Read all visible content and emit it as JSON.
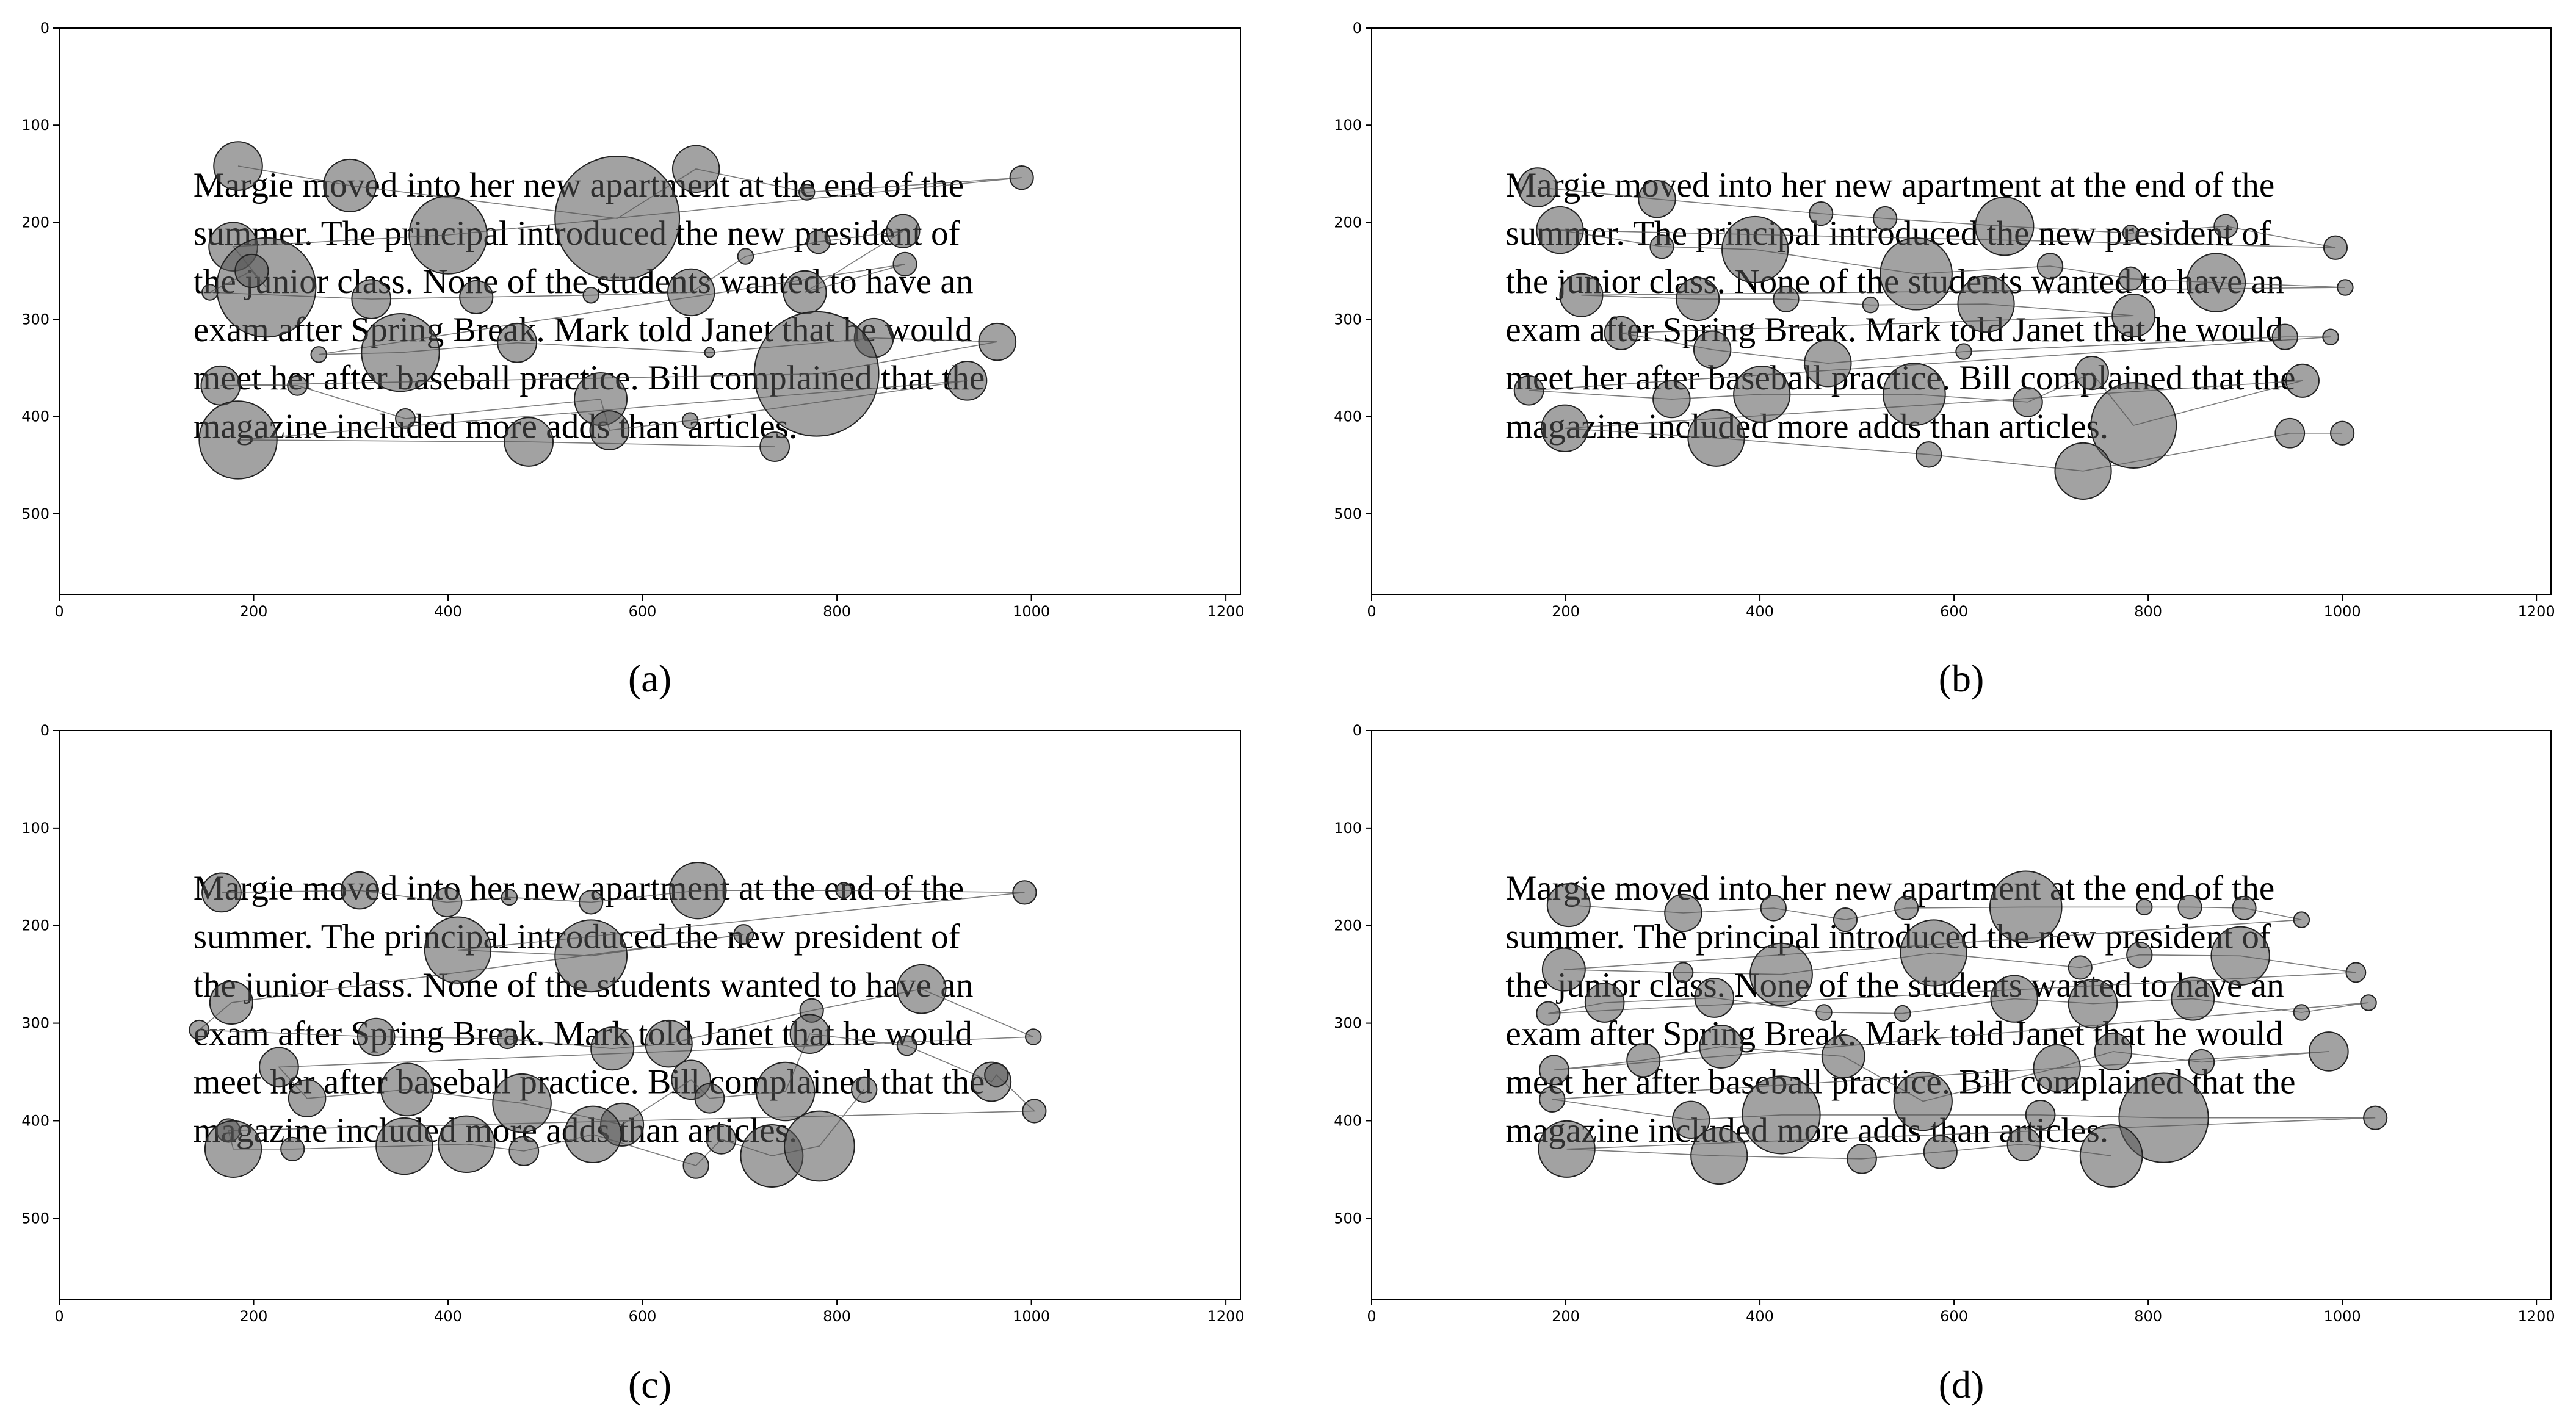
{
  "chart_data": [
    {
      "type": "bubble",
      "caption": "(a)",
      "color": "#555555",
      "stimulus_text": [
        "Margie moved into her new apartment at the end of the",
        "summer. The principal introduced the new president of",
        "the junior class. None of the students wanted to have an",
        "exam after Spring Break. Mark told Janet that he would",
        "meet her after baseball practice. Bill complained that the",
        "magazine included more adds than articles."
      ],
      "xlim": [
        0,
        1215
      ],
      "ylim": [
        583,
        0
      ],
      "xticks": [
        0,
        200,
        400,
        600,
        800,
        1000,
        1200
      ],
      "yticks": [
        0,
        100,
        200,
        300,
        400,
        500
      ],
      "x": [
        184,
        299,
        574,
        655,
        769,
        990,
        400,
        179,
        213,
        198,
        155,
        321,
        429,
        547,
        650,
        706,
        781,
        868,
        767,
        870,
        267,
        351,
        471,
        669,
        838,
        965,
        779,
        166,
        245,
        356,
        557,
        566,
        649,
        934,
        184,
        483,
        736
      ],
      "values": [
        142,
        162,
        196,
        145,
        169,
        154,
        213,
        225,
        267,
        250,
        272,
        279,
        277,
        275,
        272,
        235,
        220,
        209,
        272,
        243,
        336,
        334,
        324,
        334,
        319,
        323,
        356,
        368,
        368,
        402,
        382,
        414,
        404,
        363,
        424,
        426,
        431
      ],
      "sizes": [
        25,
        27,
        64,
        24,
        8,
        12,
        40,
        25,
        51,
        17,
        8,
        20,
        17,
        8,
        24,
        8,
        12,
        17,
        22,
        12,
        8,
        40,
        20,
        5,
        20,
        19,
        64,
        20,
        10,
        10,
        27,
        20,
        8,
        20,
        40,
        25,
        15
      ]
    },
    {
      "type": "bubble",
      "caption": "(b)",
      "color": "#555555",
      "stimulus_text": [
        "Margie moved into her new apartment at the end of the",
        "summer. The principal introduced the new president of",
        "the junior class. None of the students wanted to have an",
        "exam after Spring Break. Mark told Janet that he would",
        "meet her after baseball practice. Bill complained that the",
        "magazine included more adds than articles."
      ],
      "xlim": [
        0,
        1215
      ],
      "ylim": [
        583,
        0
      ],
      "xticks": [
        0,
        200,
        400,
        600,
        800,
        1000,
        1200
      ],
      "yticks": [
        0,
        100,
        200,
        300,
        400,
        500
      ],
      "x": [
        171,
        294,
        463,
        529,
        652,
        782,
        880,
        993,
        194,
        299,
        395,
        561,
        699,
        782,
        870,
        1003,
        216,
        336,
        427,
        514,
        633,
        785,
        257,
        351,
        470,
        610,
        941,
        988,
        162,
        309,
        402,
        559,
        676,
        742,
        785,
        959,
        199,
        355,
        574,
        733,
        946,
        1000
      ],
      "values": [
        164,
        176,
        191,
        196,
        204,
        211,
        204,
        226,
        208,
        225,
        228,
        253,
        245,
        258,
        262,
        267,
        275,
        279,
        279,
        285,
        284,
        296,
        314,
        331,
        345,
        333,
        318,
        318,
        373,
        382,
        377,
        377,
        385,
        355,
        409,
        363,
        412,
        422,
        439,
        456,
        417,
        417
      ],
      "sizes": [
        20,
        19,
        12,
        12,
        30,
        8,
        12,
        12,
        24,
        12,
        34,
        37,
        13,
        12,
        30,
        8,
        22,
        22,
        13,
        8,
        29,
        22,
        17,
        19,
        24,
        8,
        13,
        8,
        15,
        19,
        29,
        32,
        15,
        17,
        44,
        17,
        24,
        29,
        13,
        29,
        15,
        12
      ]
    },
    {
      "type": "bubble",
      "caption": "(c)",
      "color": "#555555",
      "stimulus_text": [
        "Margie moved into her new apartment at the end of the",
        "summer. The principal introduced the new president of",
        "the junior class. None of the students wanted to have an",
        "exam after Spring Break. Mark told Janet that he would",
        "meet her after baseball practice. Bill complained that the",
        "magazine included more adds than articles."
      ],
      "xlim": [
        0,
        1215
      ],
      "ylim": [
        583,
        0
      ],
      "xticks": [
        0,
        200,
        400,
        600,
        800,
        1000,
        1200
      ],
      "yticks": [
        0,
        100,
        200,
        300,
        400,
        500
      ],
      "x": [
        167,
        309,
        399,
        463,
        547,
        657,
        807,
        993,
        410,
        547,
        704,
        177,
        144,
        326,
        461,
        569,
        627,
        774,
        887,
        1002,
        226,
        255,
        358,
        476,
        579,
        650,
        669,
        747,
        772,
        872,
        959,
        964,
        1003,
        174,
        179,
        240,
        355,
        419,
        478,
        549,
        655,
        681,
        733,
        782,
        828
      ],
      "values": [
        166,
        164,
        176,
        171,
        176,
        164,
        164,
        166,
        225,
        231,
        209,
        279,
        307,
        314,
        316,
        326,
        321,
        287,
        265,
        314,
        345,
        377,
        368,
        382,
        404,
        358,
        377,
        370,
        311,
        323,
        360,
        353,
        390,
        410,
        429,
        429,
        426,
        424,
        431,
        414,
        446,
        419,
        436,
        426,
        368
      ],
      "sizes": [
        20,
        19,
        15,
        8,
        12,
        29,
        8,
        12,
        34,
        37,
        10,
        22,
        10,
        19,
        10,
        22,
        24,
        12,
        25,
        8,
        20,
        19,
        27,
        30,
        22,
        20,
        15,
        30,
        20,
        10,
        20,
        12,
        12,
        12,
        29,
        12,
        29,
        29,
        15,
        29,
        13,
        15,
        32,
        36,
        13
      ]
    },
    {
      "type": "bubble",
      "caption": "(d)",
      "color": "#555555",
      "stimulus_text": [
        "Margie moved into her new apartment at the end of the",
        "summer. The principal introduced the new president of",
        "the junior class. None of the students wanted to have an",
        "exam after Spring Break. Mark told Janet that he would",
        "meet her after baseball practice. Bill complained that the",
        "magazine included more adds than articles."
      ],
      "xlim": [
        0,
        1215
      ],
      "ylim": [
        583,
        0
      ],
      "xticks": [
        0,
        200,
        400,
        600,
        800,
        1000,
        1200
      ],
      "yticks": [
        0,
        100,
        200,
        300,
        400,
        500
      ],
      "x": [
        203,
        321,
        414,
        488,
        551,
        674,
        796,
        843,
        899,
        958,
        198,
        321,
        422,
        579,
        730,
        791,
        895,
        1014,
        182,
        240,
        353,
        466,
        547,
        662,
        743,
        846,
        958,
        1027,
        188,
        280,
        360,
        486,
        568,
        706,
        764,
        855,
        986,
        186,
        329,
        422,
        689,
        816,
        1034,
        201,
        358,
        505,
        586,
        672,
        762
      ],
      "values": [
        179,
        187,
        182,
        194,
        182,
        181,
        181,
        181,
        182,
        194,
        245,
        248,
        250,
        228,
        243,
        230,
        231,
        248,
        290,
        279,
        274,
        289,
        290,
        275,
        280,
        275,
        289,
        279,
        348,
        338,
        324,
        334,
        380,
        346,
        329,
        340,
        329,
        378,
        399,
        394,
        394,
        397,
        397,
        429,
        436,
        439,
        432,
        424,
        436
      ],
      "sizes": [
        22,
        19,
        13,
        12,
        12,
        37,
        8,
        12,
        12,
        8,
        22,
        10,
        32,
        34,
        12,
        13,
        30,
        10,
        12,
        20,
        20,
        8,
        8,
        24,
        25,
        22,
        8,
        8,
        15,
        17,
        22,
        22,
        30,
        24,
        19,
        13,
        20,
        13,
        19,
        40,
        15,
        46,
        12,
        29,
        29,
        15,
        17,
        17,
        32
      ]
    }
  ]
}
